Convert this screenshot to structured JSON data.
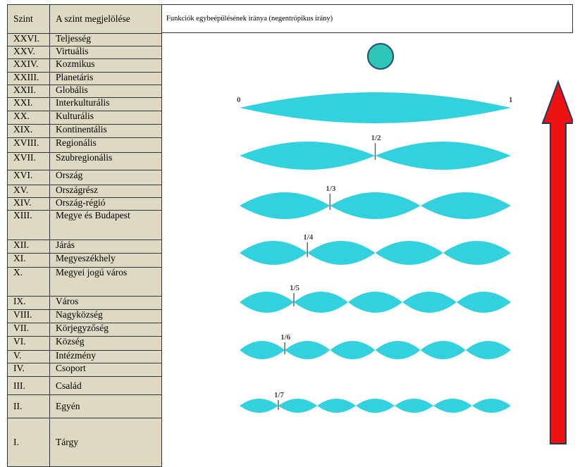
{
  "table": {
    "headers": [
      "Szint",
      "A szint megjelölése"
    ],
    "rows": [
      [
        "XXVI.",
        "Teljesség"
      ],
      [
        "XXV.",
        "Virtuális"
      ],
      [
        "XXIV.",
        "Kozmikus"
      ],
      [
        "XXIII.",
        "Planetáris"
      ],
      [
        "XXII.",
        "Globális"
      ],
      [
        "XXI.",
        "Interkulturális"
      ],
      [
        "XX.",
        "Kulturális"
      ],
      [
        "XIX.",
        "Kontinentális"
      ],
      [
        "XVIII.",
        "Regionális"
      ],
      [
        "XVII.",
        "Szubregionális"
      ],
      [
        "XVI.",
        "Ország"
      ],
      [
        "XV.",
        "Országrész"
      ],
      [
        "XIV.",
        "Ország-régió"
      ],
      [
        "XIII.",
        "Megye és Budapest"
      ],
      [
        "XII.",
        "Járás"
      ],
      [
        "XI.",
        "Megyeszékhely"
      ],
      [
        "X.",
        "Megyei jogú város"
      ],
      [
        "IX.",
        "Város"
      ],
      [
        "VIII.",
        "Nagyközség"
      ],
      [
        "VII.",
        "Körjegyzőség"
      ],
      [
        "VI.",
        "Község"
      ],
      [
        "V.",
        "Intézmény"
      ],
      [
        "IV.",
        "Csoport"
      ],
      [
        "III.",
        "Család"
      ],
      [
        "II.",
        "Egyén"
      ],
      [
        "I.",
        "Tárgy"
      ]
    ]
  },
  "figure": {
    "title": "Funkciók egybeépülésének iránya (negentrópikus irány)",
    "top_label_left": "0",
    "top_label_right": "1",
    "division_labels": [
      "1/2",
      "1/3",
      "1/4",
      "1/5",
      "1/6",
      "1/7"
    ],
    "chain_segments": [
      1,
      2,
      3,
      4,
      5,
      6,
      7
    ],
    "colors": {
      "lens_fill": "#33d1dd",
      "circle_fill": "#2ec4b6",
      "circle_stroke": "#1f4e79",
      "arrow_fill": "#ee1111",
      "arrow_stroke": "#1f3864"
    },
    "arrow_direction": "up"
  }
}
